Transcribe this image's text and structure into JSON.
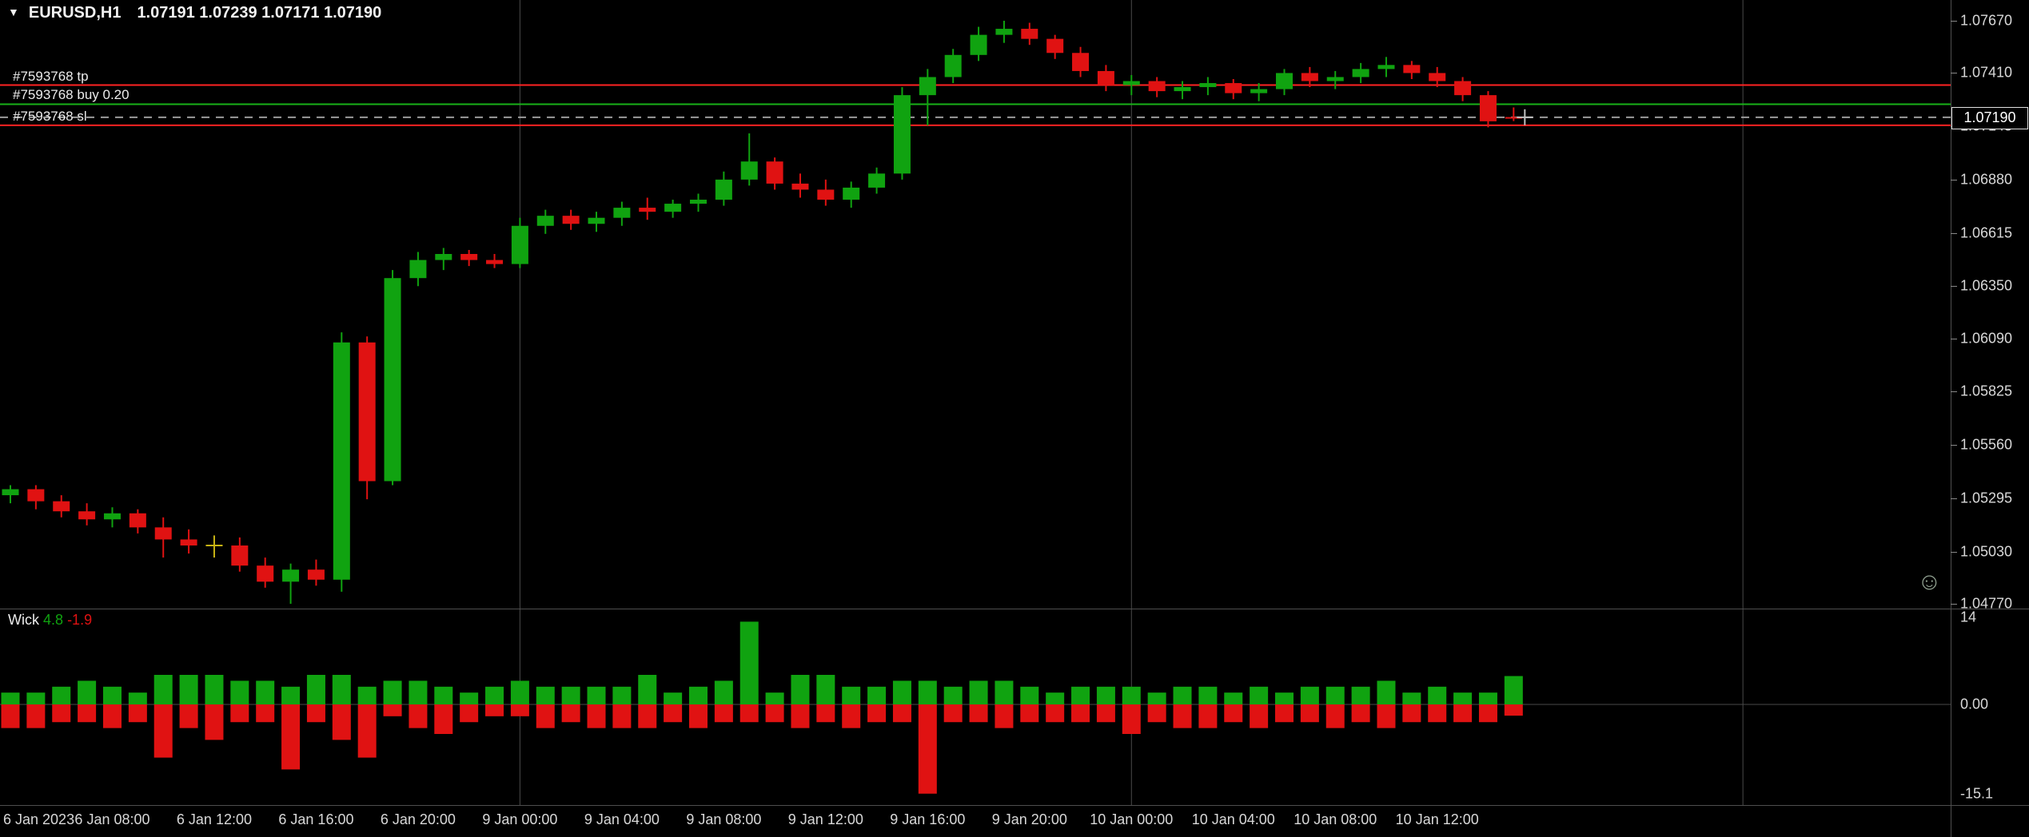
{
  "window": {
    "dropdown_icon": "▼",
    "symbol": "EURUSD,H1",
    "ohlc": "1.07191 1.07239 1.07171 1.07190"
  },
  "orders": {
    "tp": {
      "label": "#7593768 tp",
      "price": 1.0735
    },
    "entry": {
      "label": "#7593768 buy 0.20",
      "price": 1.07255
    },
    "sl": {
      "label": "#7593768 sl",
      "price": 1.0715
    }
  },
  "current_price": {
    "value": "1.07190",
    "price": 1.0719
  },
  "price_axis": {
    "labels": [
      "1.07670",
      "1.07410",
      "1.07145",
      "1.06880",
      "1.06615",
      "1.06350",
      "1.06090",
      "1.05825",
      "1.05560",
      "1.05295",
      "1.05030",
      "1.04770"
    ]
  },
  "time_axis": {
    "labels": [
      {
        "index": 0,
        "text": "6 Jan 2023"
      },
      {
        "index": 4,
        "text": "6 Jan 08:00"
      },
      {
        "index": 8,
        "text": "6 Jan 12:00"
      },
      {
        "index": 12,
        "text": "6 Jan 16:00"
      },
      {
        "index": 16,
        "text": "6 Jan 20:00"
      },
      {
        "index": 20,
        "text": "9 Jan 00:00"
      },
      {
        "index": 24,
        "text": "9 Jan 04:00"
      },
      {
        "index": 28,
        "text": "9 Jan 08:00"
      },
      {
        "index": 32,
        "text": "9 Jan 12:00"
      },
      {
        "index": 36,
        "text": "9 Jan 16:00"
      },
      {
        "index": 40,
        "text": "9 Jan 20:00"
      },
      {
        "index": 44,
        "text": "10 Jan 00:00"
      },
      {
        "index": 48,
        "text": "10 Jan 04:00"
      },
      {
        "index": 52,
        "text": "10 Jan 08:00"
      },
      {
        "index": 56,
        "text": "10 Jan 12:00"
      }
    ]
  },
  "indicator_panel": {
    "name": "Wick",
    "value_up": "4.8",
    "value_down": "-1.9",
    "axis": {
      "max": "14",
      "zero": "0.00",
      "min": "-15.1"
    }
  },
  "smiley_icon": "☺",
  "colors": {
    "bull": "#10a310",
    "bear": "#e01212",
    "doji": "#c8b414",
    "stop_line": "#ff2222",
    "entry_line": "#19b219",
    "bid_line": "#9a9a9a",
    "separator": "#4a4a4a",
    "zero_line": "#4a4a4a",
    "axis_text": "#d8d8d8",
    "cursor": "#c0c0c0"
  },
  "chart_data": {
    "type": "candlestick",
    "symbol": "EURUSD",
    "timeframe": "H1",
    "title": "EURUSD,H1 1.07191 1.07239 1.07171 1.07190",
    "price_range_visible": [
      1.0477,
      1.0767
    ],
    "grid": false,
    "columns": [
      "time",
      "open",
      "high",
      "low",
      "close"
    ],
    "candles": [
      [
        "2023.01.06 04:00",
        1.0531,
        1.0536,
        1.0527,
        1.0534
      ],
      [
        "2023.01.06 05:00",
        1.0534,
        1.0536,
        1.0524,
        1.0528
      ],
      [
        "2023.01.06 06:00",
        1.0528,
        1.0531,
        1.052,
        1.0523
      ],
      [
        "2023.01.06 07:00",
        1.0523,
        1.0527,
        1.0516,
        1.0519
      ],
      [
        "2023.01.06 08:00",
        1.0519,
        1.0525,
        1.0515,
        1.0522
      ],
      [
        "2023.01.06 09:00",
        1.0522,
        1.0524,
        1.0512,
        1.0515
      ],
      [
        "2023.01.06 10:00",
        1.0515,
        1.052,
        1.05,
        1.0509
      ],
      [
        "2023.01.06 11:00",
        1.0509,
        1.0514,
        1.0502,
        1.0506
      ],
      [
        "2023.01.06 12:00",
        1.0506,
        1.0511,
        1.05,
        1.0506
      ],
      [
        "2023.01.06 13:00",
        1.0506,
        1.051,
        1.0493,
        1.0496
      ],
      [
        "2023.01.06 14:00",
        1.0496,
        1.05,
        1.0485,
        1.0488
      ],
      [
        "2023.01.06 15:00",
        1.0488,
        1.0497,
        1.0477,
        1.0494
      ],
      [
        "2023.01.06 16:00",
        1.0494,
        1.0499,
        1.0486,
        1.0489
      ],
      [
        "2023.01.06 17:00",
        1.0489,
        1.0612,
        1.0483,
        1.0607
      ],
      [
        "2023.01.06 18:00",
        1.0607,
        1.061,
        1.0529,
        1.0538
      ],
      [
        "2023.01.06 19:00",
        1.0538,
        1.0643,
        1.0536,
        1.0639
      ],
      [
        "2023.01.06 20:00",
        1.0639,
        1.0652,
        1.0635,
        1.0648
      ],
      [
        "2023.01.06 21:00",
        1.0648,
        1.0654,
        1.0643,
        1.0651
      ],
      [
        "2023.01.06 22:00",
        1.0651,
        1.0653,
        1.0645,
        1.0648
      ],
      [
        "2023.01.06 23:00",
        1.0648,
        1.0651,
        1.0644,
        1.0646
      ],
      [
        "2023.01.09 00:00",
        1.0646,
        1.0669,
        1.0644,
        1.0665
      ],
      [
        "2023.01.09 01:00",
        1.0665,
        1.0673,
        1.0661,
        1.067
      ],
      [
        "2023.01.09 02:00",
        1.067,
        1.0673,
        1.0663,
        1.0666
      ],
      [
        "2023.01.09 03:00",
        1.0666,
        1.0672,
        1.0662,
        1.0669
      ],
      [
        "2023.01.09 04:00",
        1.0669,
        1.0677,
        1.0665,
        1.0674
      ],
      [
        "2023.01.09 05:00",
        1.0674,
        1.0679,
        1.0668,
        1.0672
      ],
      [
        "2023.01.09 06:00",
        1.0672,
        1.0678,
        1.0669,
        1.0676
      ],
      [
        "2023.01.09 07:00",
        1.0676,
        1.0681,
        1.0672,
        1.0678
      ],
      [
        "2023.01.09 08:00",
        1.0678,
        1.0692,
        1.0675,
        1.0688
      ],
      [
        "2023.01.09 09:00",
        1.0688,
        1.0711,
        1.0685,
        1.0697
      ],
      [
        "2023.01.09 10:00",
        1.0697,
        1.0699,
        1.0683,
        1.0686
      ],
      [
        "2023.01.09 11:00",
        1.0686,
        1.0691,
        1.0679,
        1.0683
      ],
      [
        "2023.01.09 12:00",
        1.0683,
        1.0688,
        1.0675,
        1.0678
      ],
      [
        "2023.01.09 13:00",
        1.0678,
        1.0687,
        1.0674,
        1.0684
      ],
      [
        "2023.01.09 14:00",
        1.0684,
        1.0694,
        1.0681,
        1.0691
      ],
      [
        "2023.01.09 15:00",
        1.0691,
        1.0734,
        1.0688,
        1.073
      ],
      [
        "2023.01.09 16:00",
        1.073,
        1.0743,
        1.07149,
        1.0739
      ],
      [
        "2023.01.09 17:00",
        1.0739,
        1.0753,
        1.0736,
        1.075
      ],
      [
        "2023.01.09 18:00",
        1.075,
        1.0764,
        1.0747,
        1.076
      ],
      [
        "2023.01.09 19:00",
        1.076,
        1.0767,
        1.0756,
        1.0763
      ],
      [
        "2023.01.09 20:00",
        1.0763,
        1.0766,
        1.0755,
        1.0758
      ],
      [
        "2023.01.09 21:00",
        1.0758,
        1.076,
        1.0748,
        1.0751
      ],
      [
        "2023.01.09 22:00",
        1.0751,
        1.0754,
        1.0739,
        1.0742
      ],
      [
        "2023.01.09 23:00",
        1.0742,
        1.0745,
        1.0732,
        1.0735
      ],
      [
        "2023.01.10 00:00",
        1.0735,
        1.074,
        1.073,
        1.0737
      ],
      [
        "2023.01.10 01:00",
        1.0737,
        1.0739,
        1.0729,
        1.0732
      ],
      [
        "2023.01.10 02:00",
        1.0732,
        1.0737,
        1.0728,
        1.0734
      ],
      [
        "2023.01.10 03:00",
        1.0734,
        1.0739,
        1.073,
        1.0736
      ],
      [
        "2023.01.10 04:00",
        1.0736,
        1.0738,
        1.0728,
        1.0731
      ],
      [
        "2023.01.10 05:00",
        1.0731,
        1.0736,
        1.0727,
        1.0733
      ],
      [
        "2023.01.10 06:00",
        1.0733,
        1.0743,
        1.073,
        1.0741
      ],
      [
        "2023.01.10 07:00",
        1.0741,
        1.0744,
        1.0734,
        1.0737
      ],
      [
        "2023.01.10 08:00",
        1.0737,
        1.0742,
        1.0733,
        1.0739
      ],
      [
        "2023.01.10 09:00",
        1.0739,
        1.0746,
        1.0736,
        1.0743
      ],
      [
        "2023.01.10 10:00",
        1.0743,
        1.0749,
        1.0739,
        1.0745
      ],
      [
        "2023.01.10 11:00",
        1.0745,
        1.0747,
        1.0738,
        1.0741
      ],
      [
        "2023.01.10 12:00",
        1.0741,
        1.0744,
        1.0734,
        1.0737
      ],
      [
        "2023.01.10 13:00",
        1.0737,
        1.0739,
        1.0727,
        1.073
      ],
      [
        "2023.01.10 14:00",
        1.073,
        1.0732,
        1.0714,
        1.0717
      ],
      [
        "2023.01.10 15:00",
        1.07191,
        1.07239,
        1.07171,
        1.0719
      ]
    ],
    "day_separator_indices": [
      20,
      44,
      68
    ],
    "indicator": {
      "type": "bar",
      "name": "Wick",
      "description": "Upper wick size in pips plotted green above zero, lower wick size in pips plotted red below zero, per candle",
      "values_derived_from": "candles",
      "current_values": [
        4.8,
        -1.9
      ],
      "ylim": [
        -15.1,
        14
      ],
      "axis_labels": [
        "14",
        "0.00",
        "-15.1"
      ]
    }
  }
}
